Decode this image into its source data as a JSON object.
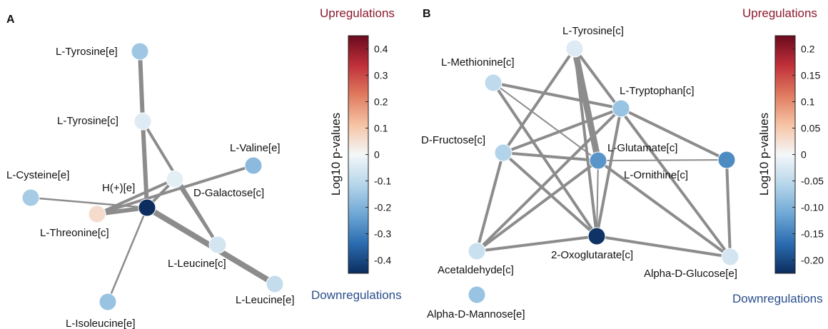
{
  "colors": {
    "edge": "#8c8c8c",
    "up_text": "#8b1a2e",
    "down_text": "#2a4e8c",
    "colormap": [
      "#0c2d5e",
      "#2b6cb0",
      "#6fa8d6",
      "#b7d6ea",
      "#f4f7f9",
      "#f6c3a5",
      "#e07b5f",
      "#c0303a",
      "#6b0a1e"
    ]
  },
  "panels": [
    {
      "id": "A",
      "letter": "A",
      "upregulations": "Upregulations",
      "downregulations": "Downregulations",
      "colorbar": {
        "title": "Log10 p-values",
        "min": -0.45,
        "max": 0.45,
        "ticks": [
          "0.4",
          "0.3",
          "0.2",
          "0.1",
          "0",
          "-0.1",
          "-0.2",
          "-0.3",
          "-0.4"
        ],
        "tick_values": [
          0.4,
          0.3,
          0.2,
          0.1,
          0,
          -0.1,
          -0.2,
          -0.3,
          -0.4
        ]
      },
      "nodes": [
        {
          "id": "tyr_e",
          "label": "L-Tyrosine[e]",
          "value": -0.15
        },
        {
          "id": "tyr_c",
          "label": "L-Tyrosine[c]",
          "value": -0.04
        },
        {
          "id": "val_e",
          "label": "L-Valine[e]",
          "value": -0.18
        },
        {
          "id": "cys_e",
          "label": "L-Cysteine[e]",
          "value": -0.14
        },
        {
          "id": "gal_c",
          "label": "D-Galactose[c]",
          "value": -0.03
        },
        {
          "id": "h_e",
          "label": "H(+)[e]",
          "value": -0.45
        },
        {
          "id": "thr_c",
          "label": "L-Threonine[c]",
          "value": 0.06
        },
        {
          "id": "leu_c",
          "label": "L-Leucine[c]",
          "value": -0.06
        },
        {
          "id": "leu_e",
          "label": "L-Leucine[e]",
          "value": -0.09
        },
        {
          "id": "ile_e",
          "label": "L-Isoleucine[e]",
          "value": -0.16
        }
      ],
      "edges": [
        {
          "source": "tyr_e",
          "target": "tyr_c",
          "weight": 3
        },
        {
          "source": "tyr_c",
          "target": "h_e",
          "weight": 3
        },
        {
          "source": "tyr_c",
          "target": "leu_c",
          "weight": 2
        },
        {
          "source": "val_e",
          "target": "thr_c",
          "weight": 2
        },
        {
          "source": "cys_e",
          "target": "h_e",
          "weight": 1
        },
        {
          "source": "gal_c",
          "target": "h_e",
          "weight": 2
        },
        {
          "source": "gal_c",
          "target": "leu_c",
          "weight": 2
        },
        {
          "source": "gal_c",
          "target": "thr_c",
          "weight": 2
        },
        {
          "source": "h_e",
          "target": "thr_c",
          "weight": 3
        },
        {
          "source": "h_e",
          "target": "leu_e",
          "weight": 4
        },
        {
          "source": "h_e",
          "target": "ile_e",
          "weight": 1
        }
      ]
    },
    {
      "id": "B",
      "letter": "B",
      "upregulations": "Upregulations",
      "downregulations": "Downregulations",
      "colorbar": {
        "title": "Log10 p-values",
        "min": -0.225,
        "max": 0.225,
        "ticks": [
          "0.2",
          "0.15",
          "0.1",
          "0.05",
          "0",
          "-0.05",
          "-0.10",
          "-0.15",
          "-0.20"
        ],
        "tick_values": [
          0.2,
          0.15,
          0.1,
          0.05,
          0,
          -0.05,
          -0.1,
          -0.15,
          -0.2
        ]
      },
      "nodes": [
        {
          "id": "tyr_c",
          "label": "L-Tyrosine[c]",
          "value": -0.02
        },
        {
          "id": "met_c",
          "label": "L-Methionine[c]",
          "value": -0.05
        },
        {
          "id": "trp_c",
          "label": "L-Tryptophan[c]",
          "value": -0.08
        },
        {
          "id": "fru_c",
          "label": "D-Fructose[c]",
          "value": -0.06
        },
        {
          "id": "glu_c",
          "label": "L-Glutamate[c]",
          "value": -0.13
        },
        {
          "id": "orn_c",
          "label": "L-Ornithine[c]",
          "value": -0.14
        },
        {
          "id": "oxo_c",
          "label": "2-Oxoglutarate[c]",
          "value": -0.22
        },
        {
          "id": "ace_c",
          "label": "Acetaldehyde[c]",
          "value": -0.04
        },
        {
          "id": "glc_e",
          "label": "Alpha-D-Glucose[e]",
          "value": -0.03
        },
        {
          "id": "man_e",
          "label": "Alpha-D-Mannose[e]",
          "value": -0.08
        }
      ],
      "edges": [
        {
          "source": "tyr_c",
          "target": "fru_c",
          "weight": 2
        },
        {
          "source": "tyr_c",
          "target": "glu_c",
          "weight": 4
        },
        {
          "source": "tyr_c",
          "target": "oxo_c",
          "weight": 2
        },
        {
          "source": "tyr_c",
          "target": "glc_e",
          "weight": 2
        },
        {
          "source": "met_c",
          "target": "glu_c",
          "weight": 5
        },
        {
          "source": "met_c",
          "target": "trp_c",
          "weight": 2
        },
        {
          "source": "met_c",
          "target": "oxo_c",
          "weight": 2
        },
        {
          "source": "trp_c",
          "target": "fru_c",
          "weight": 2
        },
        {
          "source": "trp_c",
          "target": "ace_c",
          "weight": 2
        },
        {
          "source": "trp_c",
          "target": "orn_c",
          "weight": 2
        },
        {
          "source": "trp_c",
          "target": "oxo_c",
          "weight": 2
        },
        {
          "source": "fru_c",
          "target": "glu_c",
          "weight": 2
        },
        {
          "source": "fru_c",
          "target": "ace_c",
          "weight": 2
        },
        {
          "source": "fru_c",
          "target": "oxo_c",
          "weight": 2
        },
        {
          "source": "glu_c",
          "target": "orn_c",
          "weight": 5
        },
        {
          "source": "glu_c",
          "target": "oxo_c",
          "weight": 5
        },
        {
          "source": "glu_c",
          "target": "ace_c",
          "weight": 2
        },
        {
          "source": "glu_c",
          "target": "glc_e",
          "weight": 2
        },
        {
          "source": "orn_c",
          "target": "glc_e",
          "weight": 2
        },
        {
          "source": "oxo_c",
          "target": "ace_c",
          "weight": 2
        },
        {
          "source": "oxo_c",
          "target": "glc_e",
          "weight": 2
        }
      ]
    }
  ]
}
